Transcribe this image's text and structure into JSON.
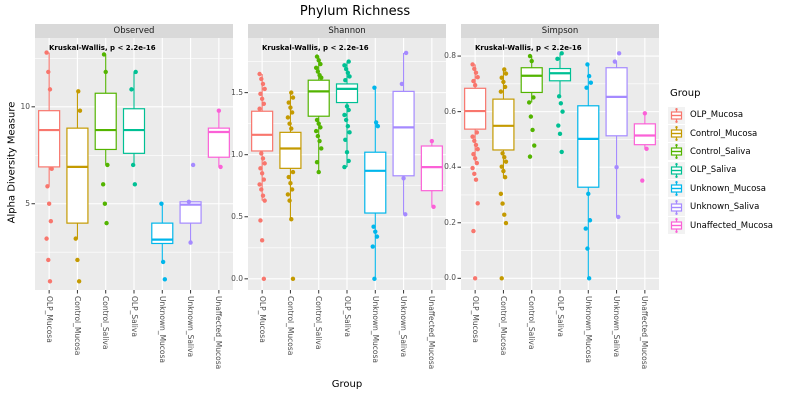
{
  "chart_data": {
    "type": "boxplot",
    "title": "Phylum Richness",
    "xlabel": "Group",
    "ylabel": "Alpha Diversity Measure",
    "legend_title": "Group",
    "annotation": "Kruskal-Wallis, p < 2.2e-16",
    "legend_position": "right",
    "grid": true,
    "colors": {
      "panel_bg": "#EBEBEB",
      "strip_bg": "#D9D9D9",
      "grid": "#FFFFFF",
      "axis_text": "#4D4D4D",
      "tick_mark": "#333333",
      "legend_key_bg": "#F2F2F2"
    },
    "groups": [
      {
        "name": "OLP_Mucosa",
        "color": "#F8766D"
      },
      {
        "name": "Control_Mucosa",
        "color": "#C49A00"
      },
      {
        "name": "Control_Saliva",
        "color": "#53B400"
      },
      {
        "name": "OLP_Saliva",
        "color": "#00C094"
      },
      {
        "name": "Unknown_Mucosa",
        "color": "#00B6EB"
      },
      {
        "name": "Unknown_Saliva",
        "color": "#A58AFF"
      },
      {
        "name": "Unaffected_Mucosa",
        "color": "#FB61D7"
      }
    ],
    "facets": [
      {
        "label": "Observed",
        "ylim": [
          0.55,
          13.55
        ],
        "yticks": [
          {
            "value": 5,
            "label": "5"
          },
          {
            "value": 10,
            "label": "10"
          }
        ],
        "yminor": [
          2.5,
          7.5,
          12.5
        ],
        "boxes": [
          {
            "whisker_low": 5.9,
            "q1": 6.9,
            "median": 8.8,
            "q3": 9.8,
            "whisker_high": 12.8,
            "points": [
              12.8,
              11.8,
              10.9,
              6.8,
              5.9,
              5.0,
              4.1,
              3.2,
              2.1,
              1.0
            ]
          },
          {
            "whisker_low": 3.2,
            "q1": 4.0,
            "median": 6.9,
            "q3": 8.9,
            "whisker_high": 10.8,
            "points": [
              10.8,
              9.8,
              3.2,
              2.1,
              1.0
            ]
          },
          {
            "whisker_low": 7.0,
            "q1": 7.8,
            "median": 8.8,
            "q3": 10.7,
            "whisker_high": 12.7,
            "points": [
              12.7,
              11.8,
              7.0,
              6.0,
              5.0,
              4.0
            ]
          },
          {
            "whisker_low": 7.0,
            "q1": 7.6,
            "median": 8.8,
            "q3": 9.9,
            "whisker_high": 11.8,
            "points": [
              11.8,
              10.9,
              7.0,
              6.0
            ]
          },
          {
            "whisker_low": 2.0,
            "q1": 2.95,
            "median": 3.15,
            "q3": 4.0,
            "whisker_high": 5.0,
            "points": [
              5.0,
              2.0,
              1.1
            ]
          },
          {
            "whisker_low": 3.0,
            "q1": 4.0,
            "median": 4.95,
            "q3": 5.1,
            "whisker_high": 5.15,
            "points": [
              7.0,
              5.1,
              3.0
            ]
          },
          {
            "whisker_low": 6.9,
            "q1": 7.4,
            "median": 8.7,
            "q3": 8.9,
            "whisker_high": 9.8,
            "points": [
              9.8,
              6.9
            ]
          }
        ]
      },
      {
        "label": "Shannon",
        "ylim": [
          -0.09,
          1.94
        ],
        "yticks": [
          {
            "value": 0.0,
            "label": "0.0"
          },
          {
            "value": 0.5,
            "label": "0.5"
          },
          {
            "value": 1.0,
            "label": "1.0"
          },
          {
            "value": 1.5,
            "label": "1.5"
          }
        ],
        "yminor": [
          0.25,
          0.75,
          1.25,
          1.75
        ],
        "boxes": [
          {
            "whisker_low": 0.63,
            "q1": 1.03,
            "median": 1.16,
            "q3": 1.35,
            "whisker_high": 1.65,
            "points": [
              1.65,
              1.61,
              1.57,
              1.53,
              1.49,
              1.45,
              1.41,
              1.37,
              1.01,
              0.97,
              0.93,
              0.89,
              0.85,
              0.8,
              0.76,
              0.72,
              0.67,
              0.63,
              0.47,
              0.31,
              0.0
            ]
          },
          {
            "whisker_low": 0.48,
            "q1": 0.89,
            "median": 1.05,
            "q3": 1.18,
            "whisker_high": 1.5,
            "points": [
              1.5,
              1.46,
              1.42,
              1.38,
              1.34,
              1.3,
              1.25,
              1.21,
              0.86,
              0.82,
              0.77,
              0.72,
              0.68,
              0.63,
              0.48,
              0.0
            ]
          },
          {
            "whisker_low": 0.86,
            "q1": 1.31,
            "median": 1.51,
            "q3": 1.6,
            "whisker_high": 1.79,
            "points": [
              1.79,
              1.76,
              1.73,
              1.7,
              1.67,
              1.64,
              1.62,
              1.28,
              1.25,
              1.22,
              1.19,
              1.15,
              1.11,
              1.05,
              0.94,
              0.86
            ]
          },
          {
            "whisker_low": 0.9,
            "q1": 1.42,
            "median": 1.53,
            "q3": 1.57,
            "whisker_high": 1.75,
            "points": [
              1.75,
              1.72,
              1.69,
              1.66,
              1.63,
              1.6,
              1.39,
              1.36,
              1.32,
              1.28,
              1.23,
              1.18,
              1.12,
              1.02,
              0.95,
              0.9
            ]
          },
          {
            "whisker_low": 0.0,
            "q1": 0.53,
            "median": 0.87,
            "q3": 1.02,
            "whisker_high": 1.54,
            "points": [
              1.54,
              1.26,
              1.23,
              0.42,
              0.38,
              0.34,
              0.26,
              0.0
            ]
          },
          {
            "whisker_low": 0.52,
            "q1": 0.83,
            "median": 1.22,
            "q3": 1.51,
            "whisker_high": 1.82,
            "points": [
              1.82,
              1.57,
              0.81,
              0.52
            ]
          },
          {
            "whisker_low": 0.58,
            "q1": 0.71,
            "median": 0.9,
            "q3": 1.07,
            "whisker_high": 1.11,
            "points": [
              1.11,
              0.58
            ]
          }
        ]
      },
      {
        "label": "Simpson",
        "ylim": [
          -0.042,
          0.865
        ],
        "yticks": [
          {
            "value": 0.0,
            "label": "0.0"
          },
          {
            "value": 0.2,
            "label": "0.2"
          },
          {
            "value": 0.4,
            "label": "0.4"
          },
          {
            "value": 0.6,
            "label": "0.6"
          },
          {
            "value": 0.8,
            "label": "0.8"
          }
        ],
        "yminor": [
          0.1,
          0.3,
          0.5,
          0.7
        ],
        "boxes": [
          {
            "whisker_low": 0.42,
            "q1": 0.537,
            "median": 0.602,
            "q3": 0.684,
            "whisker_high": 0.77,
            "points": [
              0.77,
              0.754,
              0.74,
              0.724,
              0.71,
              0.695,
              0.525,
              0.51,
              0.495,
              0.48,
              0.465,
              0.447,
              0.432,
              0.415,
              0.397,
              0.376,
              0.355,
              0.27,
              0.17,
              0.0
            ]
          },
          {
            "whisker_low": 0.36,
            "q1": 0.462,
            "median": 0.549,
            "q3": 0.645,
            "whisker_high": 0.752,
            "points": [
              0.752,
              0.737,
              0.722,
              0.707,
              0.689,
              0.672,
              0.45,
              0.436,
              0.42,
              0.402,
              0.386,
              0.364,
              0.304,
              0.269,
              0.229,
              0.199,
              0.0
            ]
          },
          {
            "whisker_low": 0.633,
            "q1": 0.669,
            "median": 0.729,
            "q3": 0.758,
            "whisker_high": 0.8,
            "points": [
              0.8,
              0.782,
              0.651,
              0.633,
              0.582,
              0.534,
              0.478,
              0.438
            ]
          },
          {
            "whisker_low": 0.655,
            "q1": 0.711,
            "median": 0.738,
            "q3": 0.755,
            "whisker_high": 0.81,
            "points": [
              0.81,
              0.79,
              0.655,
              0.63,
              0.6,
              0.55,
              0.52,
              0.455
            ]
          },
          {
            "whisker_low": 0.0,
            "q1": 0.328,
            "median": 0.502,
            "q3": 0.621,
            "whisker_high": 0.77,
            "points": [
              0.77,
              0.728,
              0.704,
              0.686,
              0.304,
              0.209,
              0.179,
              0.107,
              0.0
            ]
          },
          {
            "whisker_low": 0.221,
            "q1": 0.513,
            "median": 0.653,
            "q3": 0.758,
            "whisker_high": 0.78,
            "points": [
              0.81,
              0.78,
              0.4,
              0.221
            ]
          },
          {
            "whisker_low": 0.466,
            "q1": 0.481,
            "median": 0.514,
            "q3": 0.556,
            "whisker_high": 0.589,
            "points": [
              0.594,
              0.466,
              0.352
            ]
          }
        ]
      }
    ]
  }
}
